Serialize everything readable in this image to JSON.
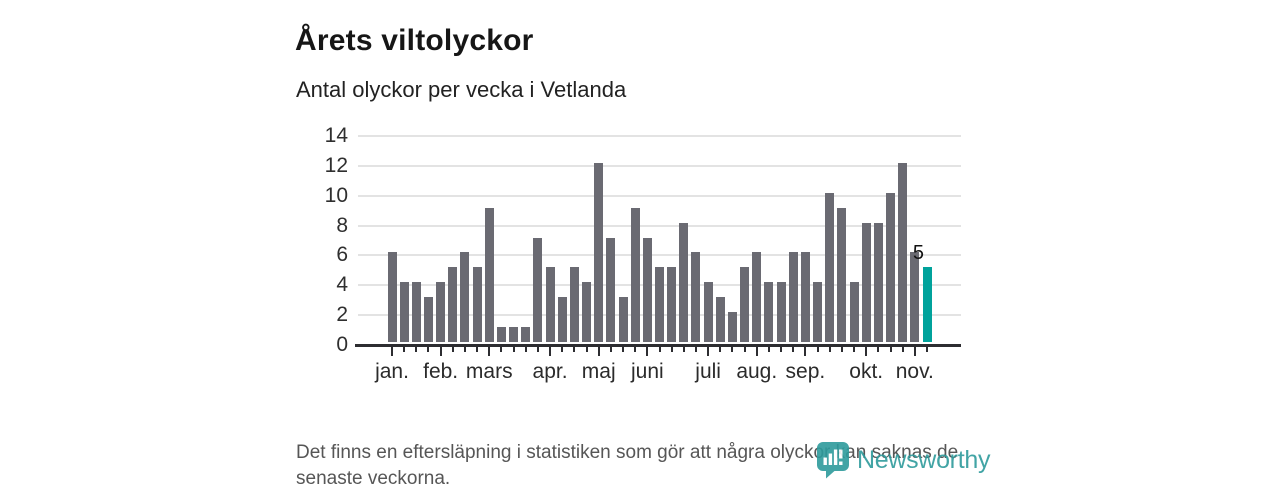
{
  "header": {
    "title": "Årets viltolyckor",
    "subtitle": "Antal olyckor per vecka i Vetlanda"
  },
  "chart_data": {
    "type": "bar",
    "title": "Årets viltolyckor",
    "subtitle": "Antal olyckor per vecka i Vetlanda",
    "x_unit": "vecka",
    "values": [
      6,
      4,
      4,
      3,
      4,
      5,
      6,
      5,
      9,
      1,
      1,
      1,
      7,
      5,
      3,
      5,
      4,
      12,
      7,
      3,
      9,
      7,
      5,
      5,
      8,
      6,
      4,
      3,
      2,
      5,
      6,
      4,
      4,
      6,
      6,
      4,
      10,
      9,
      4,
      8,
      8,
      10,
      12,
      6,
      5
    ],
    "ylim": [
      0,
      14
    ],
    "y_ticks": [
      0,
      2,
      4,
      6,
      8,
      10,
      12,
      14
    ],
    "months": [
      {
        "label": "jan.",
        "week": 1
      },
      {
        "label": "feb.",
        "week": 5
      },
      {
        "label": "mars",
        "week": 9
      },
      {
        "label": "apr.",
        "week": 14
      },
      {
        "label": "maj",
        "week": 18
      },
      {
        "label": "juni",
        "week": 22
      },
      {
        "label": "juli",
        "week": 27
      },
      {
        "label": "aug.",
        "week": 31
      },
      {
        "label": "sep.",
        "week": 35
      },
      {
        "label": "okt.",
        "week": 40
      },
      {
        "label": "nov.",
        "week": 44
      }
    ],
    "highlighted_bar": {
      "week": 45,
      "value": 5,
      "label": "5"
    },
    "grid": true,
    "legend": false,
    "colors": {
      "bar": "#6a6a72",
      "highlight": "#00a29b",
      "grid": "#e3e3e3",
      "axis": "#2d2d31"
    }
  },
  "footer": {
    "lines": [
      "Det finns en eftersläpning i statistiken som gör att några olyckor kan saknas de",
      "senaste veckorna."
    ]
  },
  "logo": {
    "name": "Newsworthy",
    "color": "#2e9b9c",
    "icon": "newsworthy-bubble-barchart-icon"
  }
}
